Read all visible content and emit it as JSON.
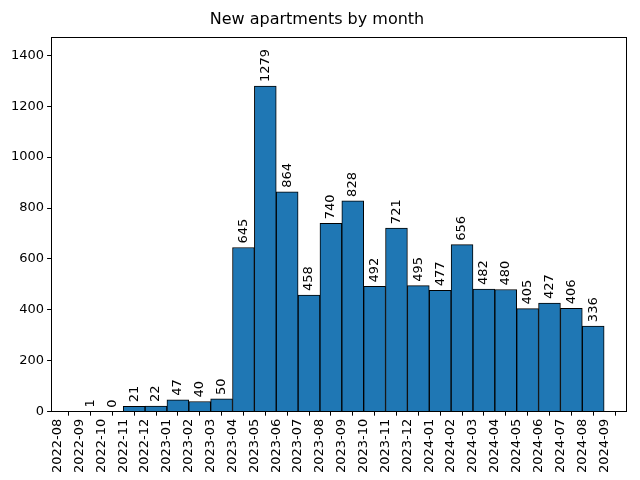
{
  "chart_data": {
    "type": "bar",
    "title": "New apartments by month",
    "bins": [
      "2022-09",
      "2022-10",
      "2022-11",
      "2022-12",
      "2023-01",
      "2023-02",
      "2023-03",
      "2023-04",
      "2023-05",
      "2023-06",
      "2023-07",
      "2023-08",
      "2023-09",
      "2023-10",
      "2023-11",
      "2023-12",
      "2024-01",
      "2024-02",
      "2024-03",
      "2024-04",
      "2024-05",
      "2024-06",
      "2024-07",
      "2024-08",
      "2024-09"
    ],
    "values": [
      1,
      0,
      21,
      22,
      47,
      40,
      50,
      645,
      1279,
      864,
      458,
      740,
      828,
      492,
      721,
      495,
      477,
      656,
      482,
      480,
      405,
      427,
      406,
      336
    ],
    "color": "#1f77b4",
    "xlim": [
      "2022-08",
      "2024-10"
    ],
    "xticks": [
      "2022-08",
      "2022-09",
      "2022-10",
      "2022-11",
      "2022-12",
      "2023-01",
      "2023-02",
      "2023-03",
      "2023-04",
      "2023-05",
      "2023-06",
      "2023-07",
      "2023-08",
      "2023-09",
      "2023-10",
      "2023-11",
      "2023-12",
      "2024-01",
      "2024-02",
      "2024-03",
      "2024-04",
      "2024-05",
      "2024-06",
      "2024-07",
      "2024-08",
      "2024-09"
    ],
    "ylim": [
      0,
      1471
    ],
    "yticks": [
      0,
      200,
      400,
      600,
      800,
      1000,
      1200,
      1400
    ],
    "grid": false,
    "data_labels": true
  }
}
